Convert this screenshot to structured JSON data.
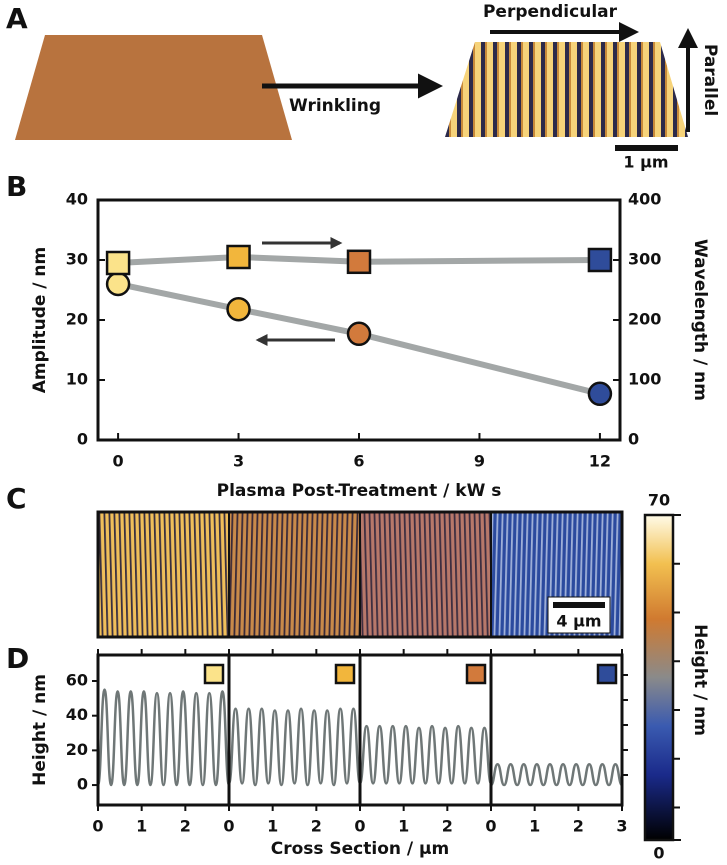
{
  "panel_a": {
    "label": "A",
    "arrow_label": "Wrinkling",
    "perpendicular": "Perpendicular",
    "parallel": "Parallel",
    "scale_bar": "1 µm"
  },
  "chart_data": [
    {
      "type": "scatter",
      "label": "B",
      "x_label": "Plasma Post-Treatment / kW s",
      "y_label": "Amplitude / nm",
      "y2_label": "Wavelength / nm",
      "xlim": [
        -0.5,
        12.5
      ],
      "xticks": [
        0,
        3,
        6,
        9,
        12
      ],
      "ylim": [
        0,
        40
      ],
      "yticks": [
        0,
        10,
        20,
        30,
        40
      ],
      "y2lim": [
        0,
        400
      ],
      "y2ticks": [
        0,
        100,
        200,
        300,
        400
      ],
      "x": [
        0,
        3,
        6,
        12
      ],
      "line_color": "#a3a7a7",
      "series": [
        {
          "marker": "circle",
          "colors": [
            "#fbe38a",
            "#f2b63c",
            "#d27a3c",
            "#2f4c9a"
          ],
          "values": [
            26,
            21.8,
            17.7,
            7.7
          ]
        },
        {
          "marker": "square",
          "axis": "y2",
          "colors": [
            "#fbe38a",
            "#f2b63c",
            "#d27a3c",
            "#2f4c9a"
          ],
          "values": [
            295,
            305,
            297,
            300
          ]
        }
      ]
    },
    {
      "type": "tiles",
      "label": "C",
      "scale_bar": "4 µm",
      "tile_colors": [
        "#f0bf5a",
        "#c98a4a",
        "#b8786a",
        "#2b4a9e"
      ],
      "stripe_colors": [
        "#3a3040",
        "#3a2a38",
        "#3e2e40",
        "#9fb0d8"
      ],
      "colorbar": {
        "title": "Height / nm",
        "lim": [
          0,
          70
        ],
        "ticks": [
          0,
          70
        ]
      }
    },
    {
      "type": "line",
      "label": "D",
      "y_label": "Height / nm",
      "x_label": "Cross Section / µm",
      "ylim": [
        -11.5,
        75
      ],
      "yticks": [
        0,
        20,
        40,
        60
      ],
      "line_color": "#6f7777",
      "panels": [
        {
          "marker_color": "#fbe38a",
          "xlim": [
            0,
            3
          ],
          "xticks": [
            0,
            1,
            2
          ],
          "x": [
            0,
            0.15,
            0.3,
            0.45,
            0.6,
            0.75,
            0.9,
            1.05,
            1.2,
            1.35,
            1.5,
            1.65,
            1.8,
            1.95,
            2.1,
            2.25,
            2.4,
            2.55,
            2.7,
            2.85,
            3
          ],
          "values": [
            0,
            55,
            0,
            54,
            0,
            54,
            0,
            54,
            0,
            53,
            0,
            53,
            0,
            54,
            0,
            53,
            0,
            53,
            0,
            54,
            0
          ]
        },
        {
          "marker_color": "#f2b63c",
          "xlim": [
            0,
            3
          ],
          "xticks": [
            0,
            1,
            2
          ],
          "x": [
            0,
            0.15,
            0.3,
            0.45,
            0.6,
            0.75,
            0.9,
            1.05,
            1.2,
            1.35,
            1.5,
            1.65,
            1.8,
            1.95,
            2.1,
            2.25,
            2.4,
            2.55,
            2.7,
            2.85,
            3
          ],
          "values": [
            1,
            44,
            1,
            44,
            0,
            44,
            1,
            43,
            0,
            43,
            1,
            44,
            0,
            43,
            1,
            43,
            0,
            44,
            1,
            44,
            1
          ]
        },
        {
          "marker_color": "#d27a3c",
          "xlim": [
            0,
            3
          ],
          "xticks": [
            0,
            1,
            2
          ],
          "x": [
            0,
            0.15,
            0.3,
            0.45,
            0.6,
            0.75,
            0.9,
            1.05,
            1.2,
            1.35,
            1.5,
            1.65,
            1.8,
            1.95,
            2.1,
            2.25,
            2.4,
            2.55,
            2.7,
            2.85,
            3
          ],
          "values": [
            1,
            34,
            1,
            34,
            1,
            34,
            1,
            34,
            1,
            33,
            1,
            34,
            1,
            33,
            1,
            34,
            1,
            33,
            1,
            33,
            1
          ]
        },
        {
          "marker_color": "#2f4c9a",
          "xlim": [
            0,
            3
          ],
          "xticks": [
            0,
            1,
            2,
            3
          ],
          "x": [
            0,
            0.15,
            0.3,
            0.45,
            0.6,
            0.75,
            0.9,
            1.05,
            1.2,
            1.35,
            1.5,
            1.65,
            1.8,
            1.95,
            2.1,
            2.25,
            2.4,
            2.55,
            2.7,
            2.85,
            3
          ],
          "values": [
            0,
            12,
            0,
            12,
            0,
            12,
            0,
            12,
            0,
            12,
            0,
            12,
            0,
            12,
            0,
            12,
            0,
            12,
            0,
            12,
            0
          ]
        }
      ]
    }
  ]
}
